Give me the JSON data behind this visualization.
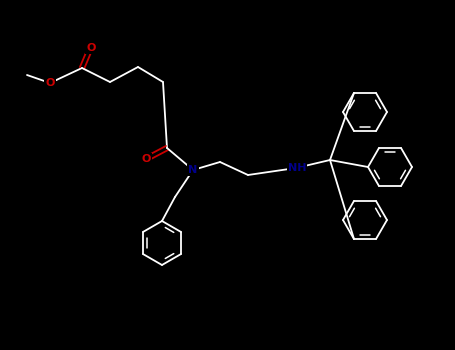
{
  "bg_color": "#000000",
  "line_color": "#ffffff",
  "atom_colors": {
    "O": "#cc0000",
    "N": "#00008b"
  },
  "figsize": [
    4.55,
    3.5
  ],
  "dpi": 100,
  "bond_lw": 1.3,
  "ring_r": 22
}
